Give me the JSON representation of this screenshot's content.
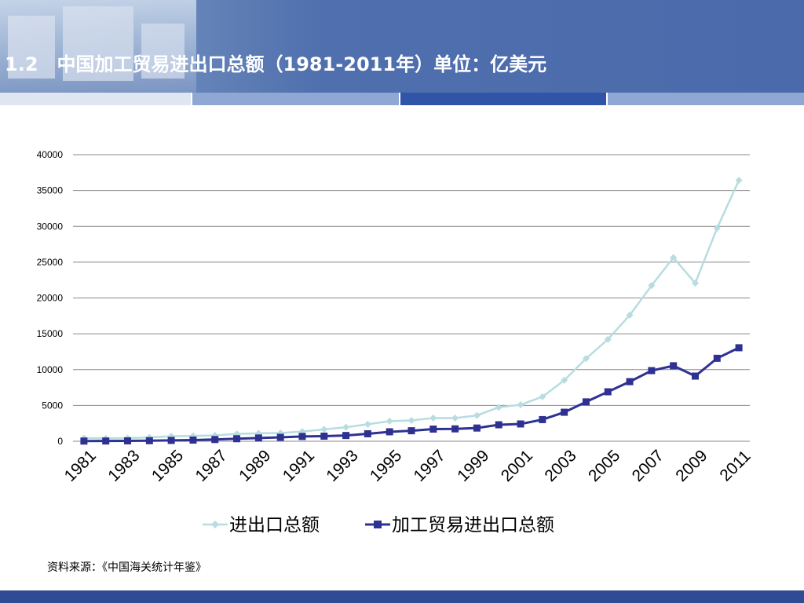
{
  "header": {
    "title": "1.2　中国加工贸易进出口总额（1981-2011年）单位：亿美元"
  },
  "source": "资料来源：《中国海关统计年鉴》",
  "chart_data": {
    "type": "line",
    "x": [
      1981,
      1982,
      1983,
      1984,
      1985,
      1986,
      1987,
      1988,
      1989,
      1990,
      1991,
      1992,
      1993,
      1994,
      1995,
      1996,
      1997,
      1998,
      1999,
      2000,
      2001,
      2002,
      2003,
      2004,
      2005,
      2006,
      2007,
      2008,
      2009,
      2010,
      2011
    ],
    "x_tick_labels": [
      "1981",
      "1983",
      "1985",
      "1987",
      "1989",
      "1991",
      "1993",
      "1995",
      "1997",
      "1999",
      "2001",
      "2003",
      "2005",
      "2007",
      "2009",
      "2011"
    ],
    "y_ticks": [
      0,
      5000,
      10000,
      15000,
      20000,
      25000,
      30000,
      35000,
      40000
    ],
    "ylim": [
      0,
      40000
    ],
    "grid": true,
    "legend_position": "bottom",
    "series": [
      {
        "name": "进出口总额",
        "color": "#b7dde0",
        "marker": "diamond",
        "values": [
          440,
          416,
          436,
          535,
          696,
          738,
          827,
          1028,
          1116,
          1154,
          1357,
          1655,
          1957,
          2366,
          2809,
          2899,
          3252,
          3239,
          3606,
          4743,
          5097,
          6208,
          8510,
          11546,
          14219,
          17604,
          21737,
          25633,
          22075,
          29740,
          36419
        ]
      },
      {
        "name": "加工贸易进出口总额",
        "color": "#2e3192",
        "marker": "square",
        "values": [
          25,
          38,
          57,
          80,
          117,
          162,
          243,
          355,
          458,
          550,
          670,
          711,
          806,
          1045,
          1321,
          1466,
          1698,
          1730,
          1845,
          2302,
          2415,
          3022,
          4048,
          5497,
          6905,
          8319,
          9860,
          10536,
          9093,
          11578,
          13052
        ]
      }
    ]
  }
}
